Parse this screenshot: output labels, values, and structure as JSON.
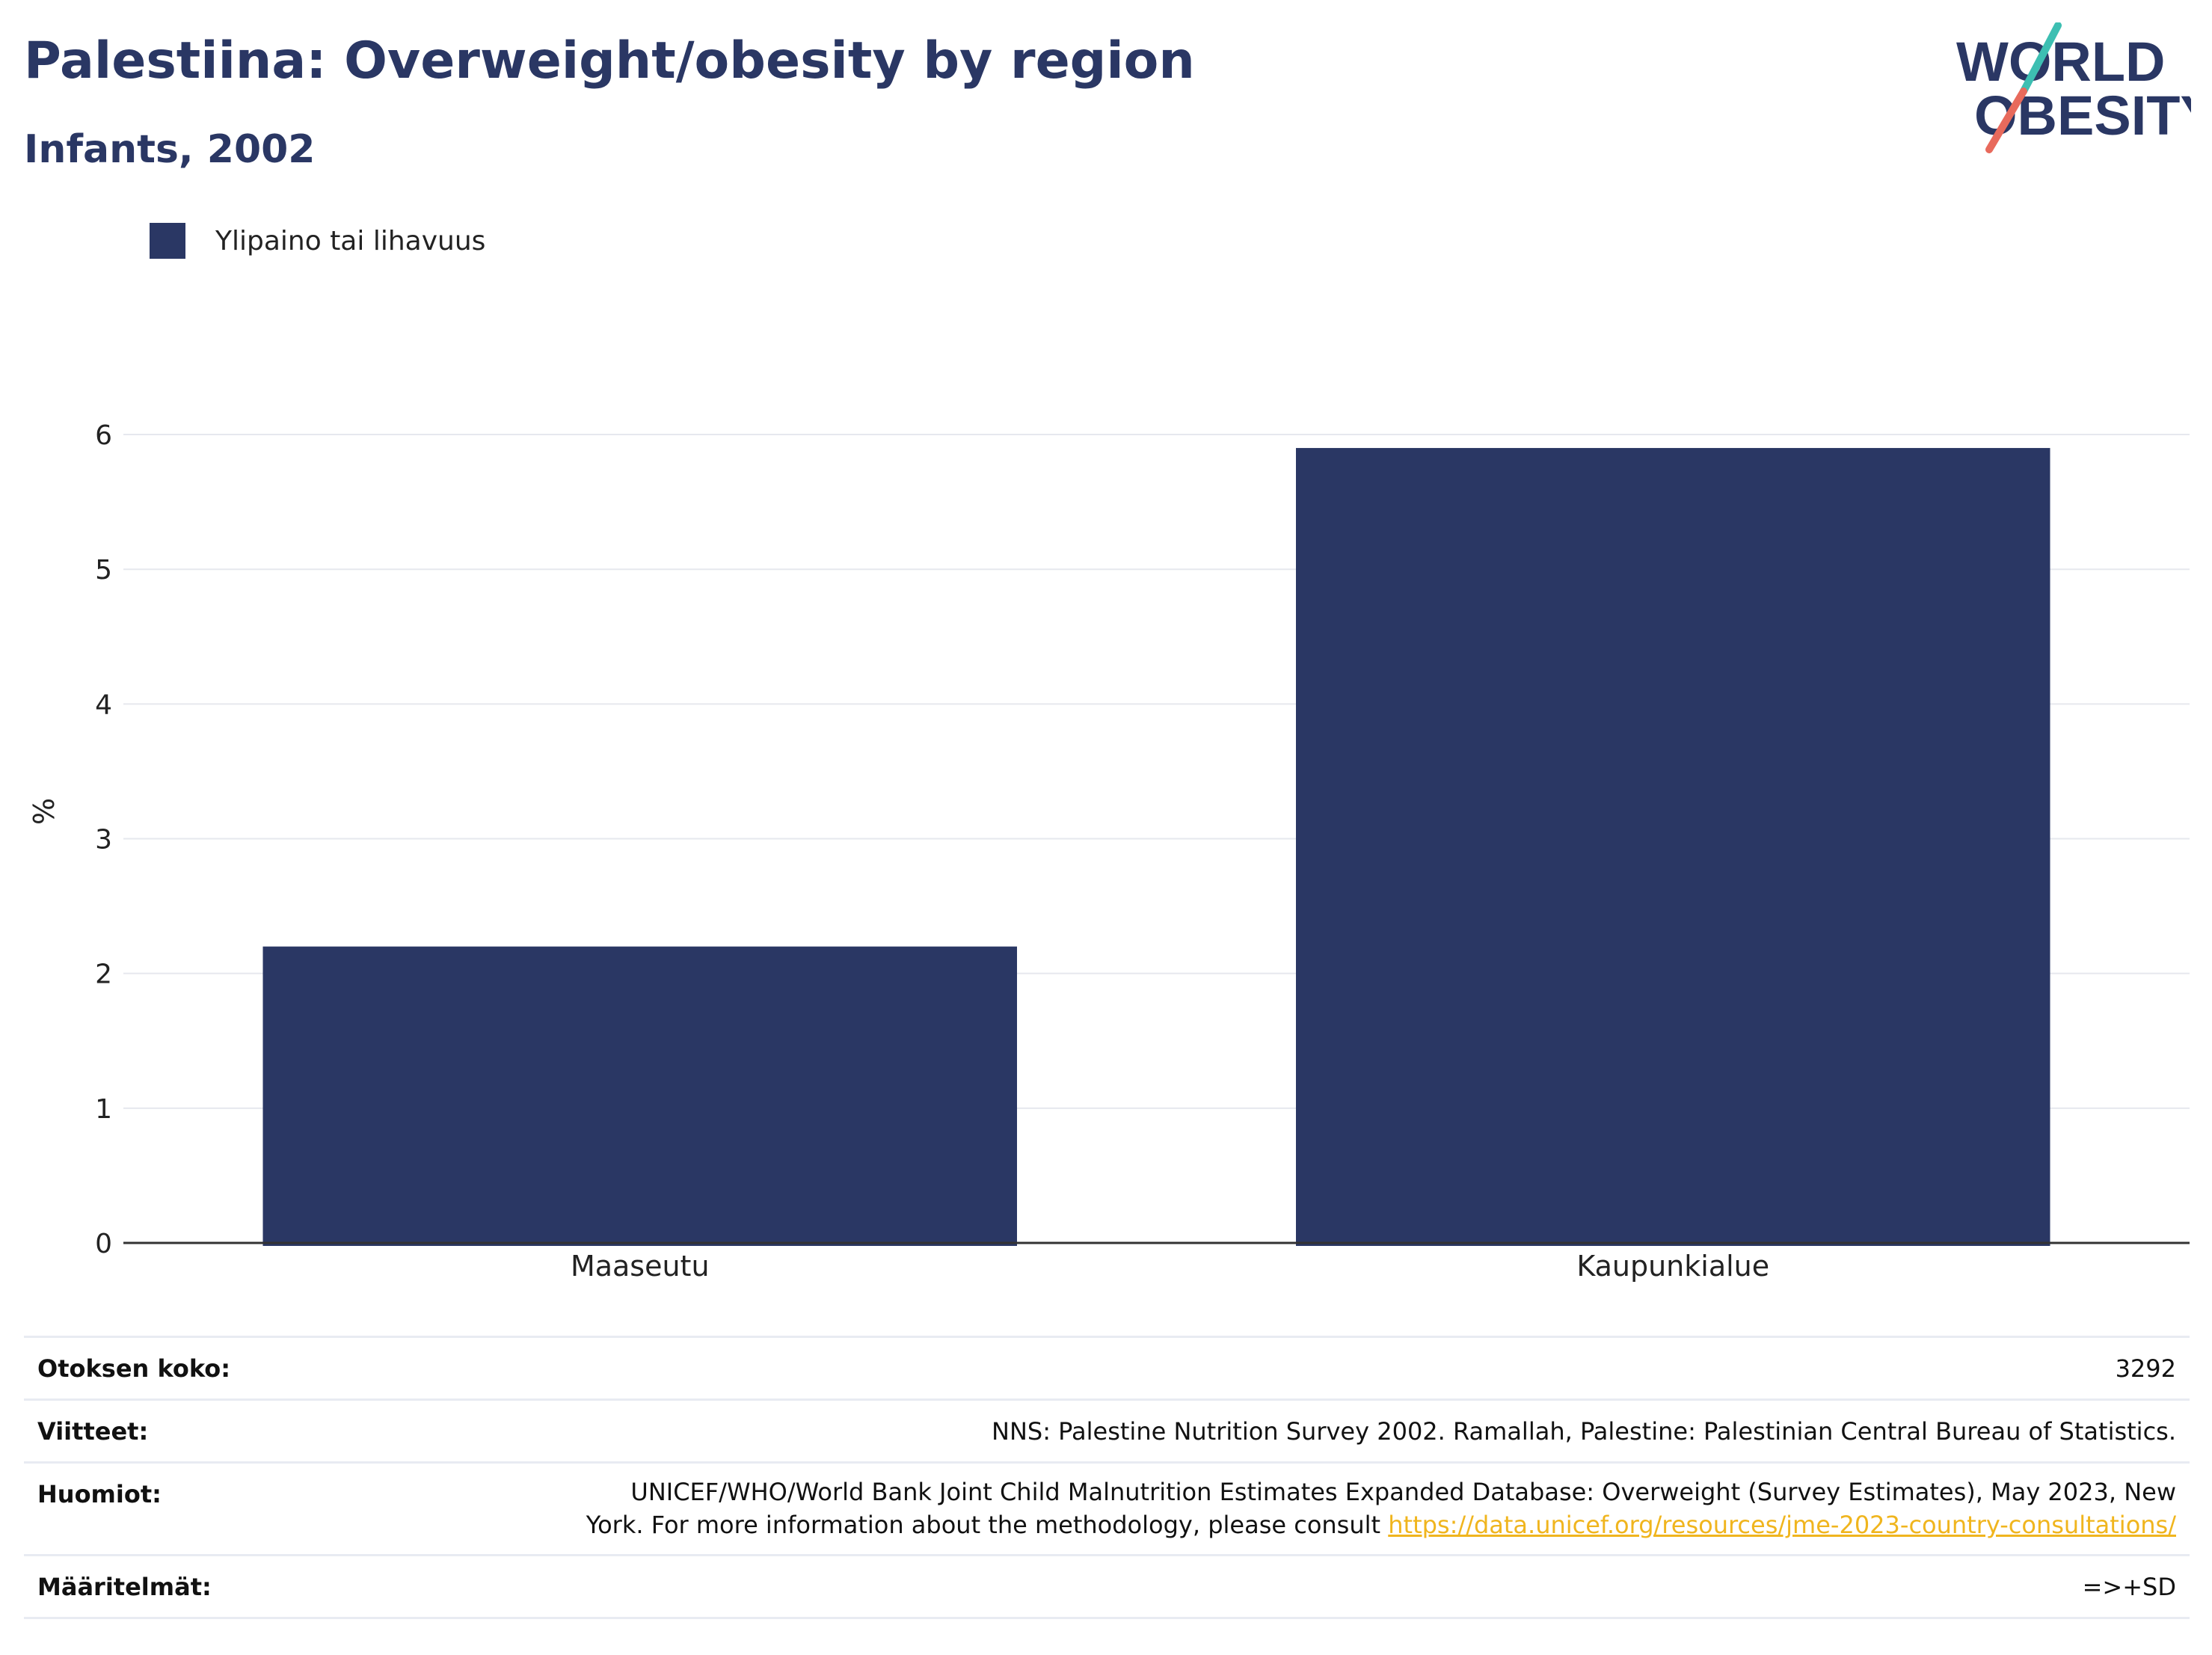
{
  "header": {
    "title": "Palestiina: Overweight/obesity by region",
    "subtitle": "Infants, 2002"
  },
  "logo": {
    "line1": "WORLD",
    "line2": "OBESITY",
    "colors": {
      "text": "#2a3764",
      "slash_top": "#3dbfb2",
      "slash_bottom": "#e86a5c"
    }
  },
  "legend": {
    "label": "Ylipaino tai lihavuus",
    "color": "#2a3764"
  },
  "chart_data": {
    "type": "bar",
    "categories": [
      "Maaseutu",
      "Kaupunkialue"
    ],
    "series": [
      {
        "name": "Ylipaino tai lihavuus",
        "values": [
          2.2,
          5.9
        ],
        "color": "#2a3764"
      }
    ],
    "ylabel": "%",
    "xlabel": "",
    "ylim": [
      0,
      6.2
    ],
    "yticks": [
      "0",
      "1",
      "2",
      "3",
      "4",
      "5",
      "6"
    ],
    "grid": true,
    "legend_position": "top-left"
  },
  "info": {
    "rows": [
      {
        "key": "Otoksen koko:",
        "value": "3292"
      },
      {
        "key": "Viitteet:",
        "value": "NNS: Palestine Nutrition Survey 2002. Ramallah, Palestine: Palestinian Central Bureau of Statistics."
      },
      {
        "key": "Huomiot:",
        "value_line1": "UNICEF/WHO/World Bank Joint Child Malnutrition Estimates Expanded Database: Overweight (Survey Estimates), May 2023, New",
        "value_line2": "York. For more information about the methodology, please consult ",
        "link": "https://data.unicef.org/resources/jme-2023-country-consultations/"
      },
      {
        "key": "Määritelmät:",
        "value": "=>+SD"
      }
    ]
  }
}
